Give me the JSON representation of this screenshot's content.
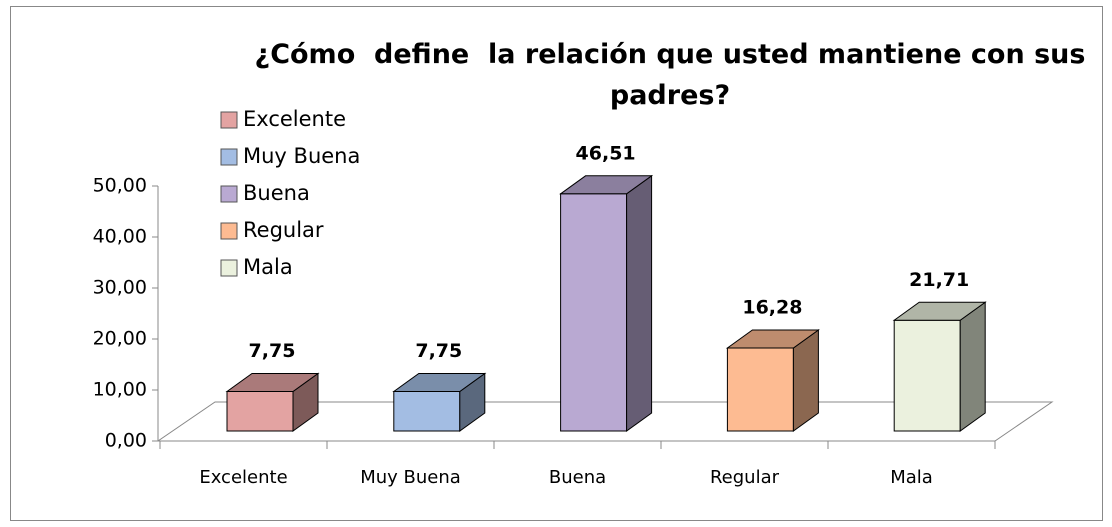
{
  "chart_data": {
    "type": "bar3d",
    "title": "¿Cómo  define  la relación que usted mantiene con sus padres?",
    "categories": [
      "Excelente",
      "Muy Buena",
      "Buena",
      "Regular",
      "Mala"
    ],
    "values": [
      7.75,
      7.75,
      46.51,
      16.28,
      21.71
    ],
    "value_labels": [
      "7,75",
      "7,75",
      "46,51",
      "16,28",
      "21,71"
    ],
    "colors": [
      "#e3a3a2",
      "#a3bde3",
      "#b9a9d2",
      "#fdbb92",
      "#ebf1de"
    ],
    "ylim": [
      0,
      50
    ],
    "yticks": [
      {
        "value": 0,
        "label": "0,00"
      },
      {
        "value": 10,
        "label": "10,00"
      },
      {
        "value": 20,
        "label": "20,00"
      },
      {
        "value": 30,
        "label": "30,00"
      },
      {
        "value": 40,
        "label": "40,00"
      },
      {
        "value": 50,
        "label": "50,00"
      }
    ],
    "legend": "top-left"
  }
}
